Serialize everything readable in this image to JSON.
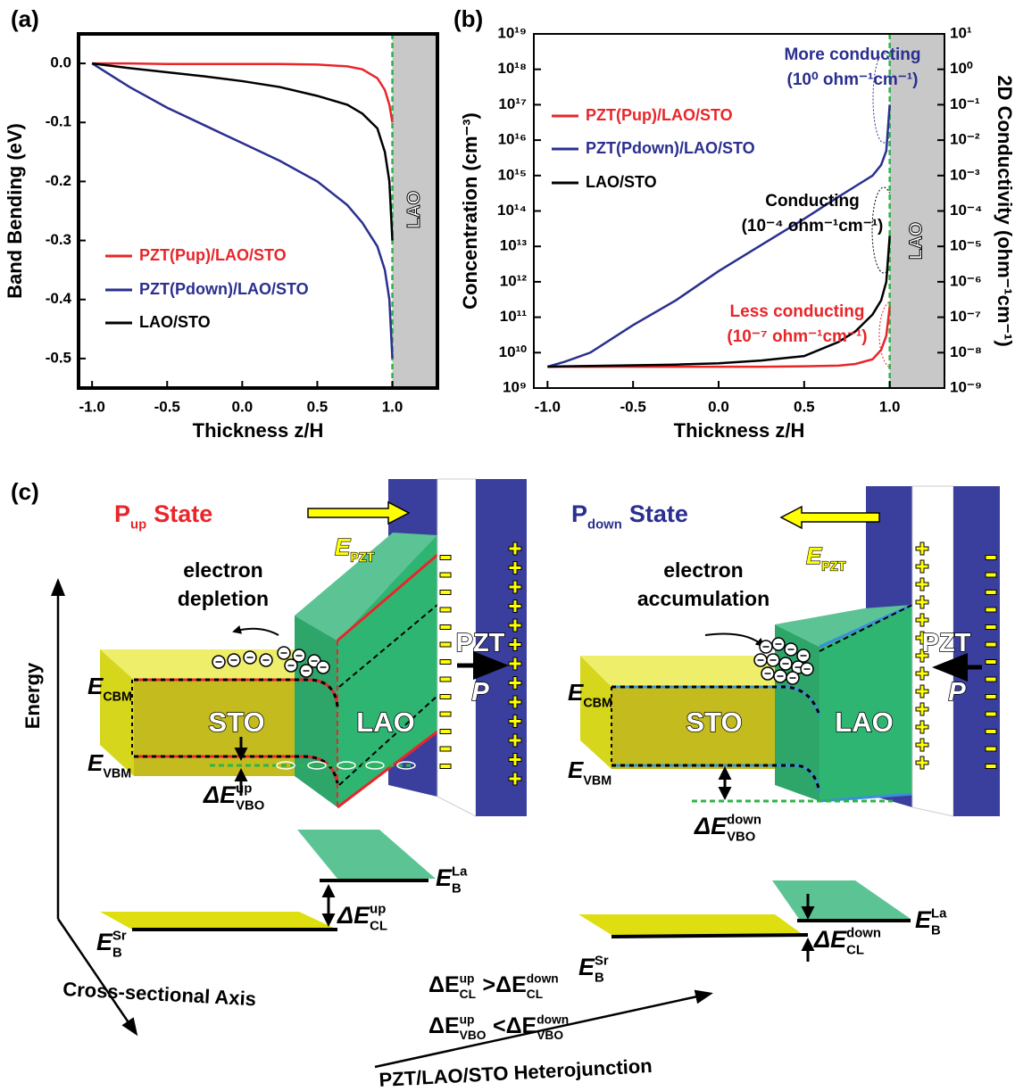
{
  "chart_data": [
    {
      "type": "line",
      "xlabel": "Thickness z/H",
      "ylabel": "Band Bending (eV)",
      "x": [
        -1,
        -0.75,
        -0.5,
        -0.25,
        0,
        0.25,
        0.5,
        0.7,
        0.8,
        0.9,
        0.95,
        0.98,
        1.0
      ],
      "series": [
        {
          "name": "PZT(Pup)/LAO/STO",
          "color": "#e8262a",
          "values": [
            0,
            0,
            -0.001,
            -0.001,
            -0.001,
            -0.001,
            -0.002,
            -0.005,
            -0.01,
            -0.025,
            -0.045,
            -0.07,
            -0.1
          ]
        },
        {
          "name": "PZT(Pdown)/LAO/STO",
          "color": "#2b2f8f",
          "values": [
            0,
            -0.04,
            -0.075,
            -0.105,
            -0.135,
            -0.165,
            -0.2,
            -0.24,
            -0.27,
            -0.31,
            -0.35,
            -0.4,
            -0.5
          ]
        },
        {
          "name": "LAO/STO",
          "color": "#000000",
          "values": [
            0,
            -0.008,
            -0.015,
            -0.022,
            -0.03,
            -0.04,
            -0.055,
            -0.07,
            -0.085,
            -0.11,
            -0.15,
            -0.2,
            -0.3
          ]
        }
      ],
      "xlim": [
        -1.09,
        1.3
      ],
      "ylim": [
        -0.55,
        0.05
      ],
      "xticks": [
        {
          "value": -1,
          "label": "-1.0"
        },
        -0.5,
        {
          "value": 0,
          "label": "0.0"
        },
        0.5,
        {
          "value": 1,
          "label": "1.0"
        }
      ],
      "yticks": [
        {
          "value": 0,
          "label": "0.0"
        },
        -0.1,
        -0.2,
        -0.3,
        -0.4,
        -0.5
      ],
      "shade_x": 1,
      "shade_label": "LAO",
      "legend": "lower left"
    },
    {
      "type": "line",
      "xlabel": "Thickness z/H",
      "ylabel": "Concentration (cm⁻³)",
      "y2label": "2D Conductivity (ohm⁻¹cm⁻¹)",
      "ylog": true,
      "x": [
        -1,
        -0.9,
        -0.75,
        -0.5,
        -0.25,
        0,
        0.25,
        0.5,
        0.7,
        0.8,
        0.9,
        0.95,
        0.98,
        1.0
      ],
      "series": [
        {
          "name": "PZT(Pup)/LAO/STO",
          "color": "#e8262a",
          "values": [
            4000000000.0,
            4000000000.0,
            4000000000.0,
            4000000000.0,
            4000000000.0,
            4000000000.0,
            4000000000.0,
            4100000000.0,
            4300000000.0,
            4800000000.0,
            6500000000.0,
            12000000000.0,
            30000000000.0,
            200000000000.0
          ]
        },
        {
          "name": "PZT(Pdown)/LAO/STO",
          "color": "#2b2f8f",
          "values": [
            4000000000.0,
            5500000000.0,
            10000000000.0,
            60000000000.0,
            300000000000.0,
            2000000000000.0,
            11000000000000.0,
            60000000000000.0,
            250000000000000.0,
            500000000000000.0,
            1000000000000000.0,
            2000000000000000.0,
            5000000000000000.0,
            1e+17
          ]
        },
        {
          "name": "LAO/STO",
          "color": "#000000",
          "values": [
            4000000000.0,
            4100000000.0,
            4200000000.0,
            4400000000.0,
            4600000000.0,
            5000000000.0,
            6000000000.0,
            8000000000.0,
            20000000000.0,
            40000000000.0,
            120000000000.0,
            300000000000.0,
            1000000000000.0,
            20000000000000.0
          ]
        }
      ],
      "xlim": [
        -1.08,
        1.32
      ],
      "ylim": [
        1000000000.0,
        1e+19
      ],
      "y2lim": [
        1e-09,
        10
      ],
      "xticks": [
        {
          "value": -1,
          "label": "-1.0"
        },
        -0.5,
        {
          "value": 0,
          "label": "0.0"
        },
        0.5,
        {
          "value": 1,
          "label": "1.0"
        }
      ],
      "yticks": [
        {
          "value": 1000000000.0,
          "label": "10⁹"
        },
        {
          "value": 10000000000.0,
          "label": "10¹⁰"
        },
        {
          "value": 100000000000.0,
          "label": "10¹¹"
        },
        {
          "value": 1000000000000.0,
          "label": "10¹²"
        },
        {
          "value": 10000000000000.0,
          "label": "10¹³"
        },
        {
          "value": 100000000000000.0,
          "label": "10¹⁴"
        },
        {
          "value": 1000000000000000.0,
          "label": "10¹⁵"
        },
        {
          "value": 1e+16,
          "label": "10¹⁶"
        },
        {
          "value": 1e+17,
          "label": "10¹⁷"
        },
        {
          "value": 1e+18,
          "label": "10¹⁸"
        },
        {
          "value": 1e+19,
          "label": "10¹⁹"
        }
      ],
      "y2ticks": [
        {
          "value": 1e-09,
          "label": "10⁻⁹"
        },
        {
          "value": 1e-08,
          "label": "10⁻⁸"
        },
        {
          "value": 1e-07,
          "label": "10⁻⁷"
        },
        {
          "value": 1e-06,
          "label": "10⁻⁶"
        },
        {
          "value": 1e-05,
          "label": "10⁻⁵"
        },
        {
          "value": 0.0001,
          "label": "10⁻⁴"
        },
        {
          "value": 0.001,
          "label": "10⁻³"
        },
        {
          "value": 0.01,
          "label": "10⁻²"
        },
        {
          "value": 0.1,
          "label": "10⁻¹"
        },
        {
          "value": 1,
          "label": "10⁰"
        },
        {
          "value": 10,
          "label": "10¹"
        }
      ],
      "shade_x": 1,
      "shade_label": "LAO",
      "legend": "upper left",
      "annotations": [
        {
          "text": "More conducting",
          "color": "#2b2f8f"
        },
        {
          "text": "(10⁰ ohm⁻¹cm⁻¹)",
          "color": "#2b2f8f"
        },
        {
          "text": "Conducting",
          "color": "#000000"
        },
        {
          "text": "(10⁻⁴ ohm⁻¹cm⁻¹)",
          "color": "#000000"
        },
        {
          "text": "Less conducting",
          "color": "#e8262a"
        },
        {
          "text": "(10⁻⁷ ohm⁻¹cm⁻¹)",
          "color": "#e8262a"
        }
      ]
    }
  ],
  "panel_labels": [
    "(a)",
    "(b)",
    "(c)"
  ],
  "diagram": {
    "left": {
      "state": [
        "P",
        "up",
        "State"
      ],
      "field": [
        "E",
        "PZT"
      ],
      "process": [
        "electron",
        "depletion"
      ],
      "cbm": [
        "E",
        "CBM"
      ],
      "vbm": [
        "E",
        "VBM"
      ],
      "sto": "STO",
      "lao": "LAO",
      "pzt": "PZT",
      "polarization": "P",
      "dvbo": [
        "ΔE",
        "up",
        "VBO"
      ],
      "la": [
        "E",
        "La",
        "B"
      ],
      "sr": [
        "E",
        "Sr",
        "B"
      ],
      "dcl": [
        "ΔE",
        "up",
        "CL"
      ]
    },
    "right": {
      "state": [
        "P",
        "down",
        "State"
      ],
      "field": [
        "E",
        "PZT"
      ],
      "process": [
        "electron",
        "accumulation"
      ],
      "cbm": [
        "E",
        "CBM"
      ],
      "vbm": [
        "E",
        "VBM"
      ],
      "sto": "STO",
      "lao": "LAO",
      "pzt": "PZT",
      "polarization": "P",
      "dvbo": [
        "ΔE",
        "down",
        "VBO"
      ],
      "la": [
        "E",
        "La",
        "B"
      ],
      "sr": [
        "E",
        "Sr",
        "B"
      ],
      "dcl": [
        "ΔE",
        "down",
        "CL"
      ]
    },
    "energy_axis": "Energy",
    "cross_axis": "Cross-sectional Axis",
    "junction_axis": "PZT/LAO/STO Heterojunction",
    "comparisons": [
      [
        "ΔE",
        "up",
        "CL",
        ">",
        "ΔE",
        "down",
        "CL"
      ],
      [
        "ΔE",
        "up",
        "VBO",
        "<",
        "ΔE",
        "down",
        "VBO"
      ]
    ]
  }
}
